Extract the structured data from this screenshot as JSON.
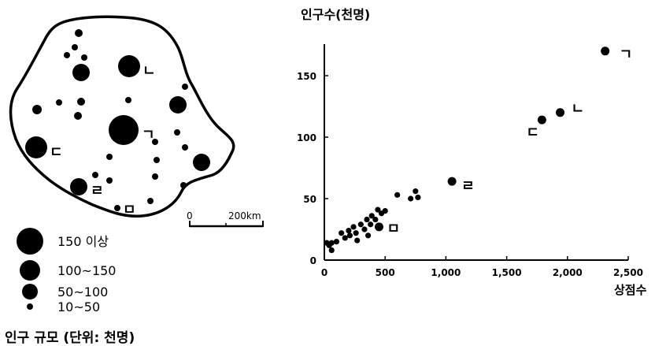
{
  "map": {
    "scale": {
      "zero": "0",
      "distance": "200km"
    },
    "city_labels": [
      {
        "id": "giyeok",
        "text": "ㄱ"
      },
      {
        "id": "nieun",
        "text": "ㄴ"
      },
      {
        "id": "digeut",
        "text": "ㄷ"
      },
      {
        "id": "rieul",
        "text": "ㄹ"
      },
      {
        "id": "mieum",
        "text": "ㅁ"
      }
    ],
    "legend": {
      "title": "인구 규모 (단위: 천명)",
      "items": [
        "150 이상",
        "100~150",
        "50~100",
        "10~50"
      ]
    }
  },
  "chart_data": {
    "type": "scatter",
    "ylabel": "인구수(천명)",
    "xlabel": "상점수",
    "xlim": [
      0,
      2500
    ],
    "ylim": [
      0,
      175
    ],
    "xticks": [
      "0",
      "500",
      "1,000",
      "1,500",
      "2,000",
      "2,500"
    ],
    "yticks": [
      "0",
      "50",
      "100",
      "150"
    ],
    "grid": false,
    "labeled_points": [
      {
        "label": "ㄱ",
        "x": 2310,
        "y": 170
      },
      {
        "label": "ㄴ",
        "x": 1940,
        "y": 120
      },
      {
        "label": "ㄷ",
        "x": 1790,
        "y": 114
      },
      {
        "label": "ㄹ",
        "x": 1050,
        "y": 64
      },
      {
        "label": "ㅁ",
        "x": 450,
        "y": 27
      }
    ],
    "small_points": [
      [
        20,
        14
      ],
      [
        40,
        12
      ],
      [
        60,
        14
      ],
      [
        60,
        8
      ],
      [
        100,
        15
      ],
      [
        140,
        22
      ],
      [
        170,
        18
      ],
      [
        200,
        24
      ],
      [
        210,
        20
      ],
      [
        240,
        27
      ],
      [
        260,
        22
      ],
      [
        270,
        16
      ],
      [
        300,
        29
      ],
      [
        330,
        25
      ],
      [
        350,
        33
      ],
      [
        360,
        20
      ],
      [
        380,
        29
      ],
      [
        390,
        36
      ],
      [
        420,
        33
      ],
      [
        440,
        41
      ],
      [
        470,
        38
      ],
      [
        500,
        40
      ],
      [
        600,
        53
      ],
      [
        710,
        50
      ],
      [
        750,
        56
      ],
      [
        770,
        51
      ]
    ]
  }
}
